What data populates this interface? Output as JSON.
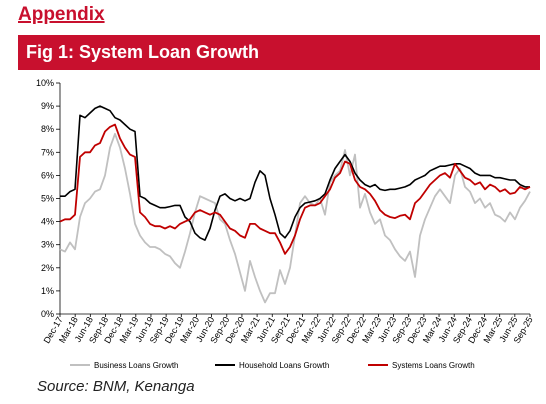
{
  "header": {
    "appendix": "Appendix"
  },
  "figure": {
    "title": "Fig 1: System Loan Growth"
  },
  "footer": {
    "source": "Source: BNM, Kenanga"
  },
  "chart_data": {
    "type": "line",
    "title": "Fig 1: System Loan Growth",
    "xlabel": "",
    "ylabel": "",
    "ylim": [
      0,
      10
    ],
    "y_ticks": [
      "0%",
      "1%",
      "2%",
      "3%",
      "4%",
      "5%",
      "6%",
      "7%",
      "8%",
      "9%",
      "10%"
    ],
    "y_unit": "%",
    "grid": false,
    "legend": "bottom",
    "x_start": "Dec-17",
    "x_end": "Sep-25",
    "x_ticks": [
      "Dec-17",
      "Mar-18",
      "Jun-18",
      "Sep-18",
      "Dec-18",
      "Mar-19",
      "Jun-19",
      "Sep-19",
      "Dec-19",
      "Mar-20",
      "Jun-20",
      "Sep-20",
      "Dec-20",
      "Mar-21",
      "Jun-21",
      "Sep-21",
      "Dec-21",
      "Mar-22",
      "Jun-22",
      "Sep-22",
      "Dec-22",
      "Mar-23",
      "Jun-23",
      "Sep-23",
      "Dec-23",
      "Mar-24",
      "Jun-24",
      "Sep-24",
      "Dec-24",
      "Mar-25",
      "Jun-25",
      "Sep-25"
    ],
    "series": [
      {
        "name": "Business Loans Growth",
        "color": "#c0c0c0",
        "values": [
          2.8,
          2.7,
          3.1,
          2.8,
          4.2,
          4.8,
          5.0,
          5.3,
          5.4,
          6.0,
          7.2,
          7.8,
          7.2,
          6.3,
          5.2,
          3.9,
          3.4,
          3.1,
          2.9,
          2.9,
          2.8,
          2.6,
          2.5,
          2.2,
          2.0,
          2.7,
          3.5,
          4.4,
          5.1,
          5.0,
          4.9,
          4.8,
          4.1,
          3.9,
          3.2,
          2.6,
          1.8,
          1.0,
          2.3,
          1.6,
          1.0,
          0.5,
          0.9,
          0.9,
          1.9,
          1.3,
          2.0,
          3.4,
          4.8,
          5.1,
          4.8,
          4.7,
          5.0,
          4.3,
          5.7,
          6.0,
          6.2,
          7.1,
          6.0,
          6.9,
          4.6,
          5.2,
          4.4,
          3.9,
          4.1,
          3.4,
          3.2,
          2.8,
          2.5,
          2.3,
          2.7,
          1.6,
          3.4,
          4.1,
          4.6,
          5.1,
          5.4,
          5.1,
          4.8,
          6.0,
          6.3,
          5.5,
          5.3,
          4.8,
          5.0,
          4.6,
          4.8,
          4.3,
          4.2,
          4.0,
          4.4,
          4.1,
          4.6,
          4.9,
          5.3
        ]
      },
      {
        "name": "Household Loans Growth",
        "color": "#000000",
        "values": [
          5.1,
          5.1,
          5.3,
          5.4,
          8.6,
          8.5,
          8.7,
          8.9,
          9.0,
          8.9,
          8.8,
          8.5,
          8.4,
          8.2,
          8.0,
          7.9,
          5.1,
          5.0,
          4.8,
          4.7,
          4.6,
          4.6,
          4.65,
          4.7,
          4.7,
          4.2,
          4.0,
          3.5,
          3.3,
          3.2,
          3.7,
          4.5,
          5.1,
          5.2,
          5.0,
          4.9,
          5.0,
          4.9,
          5.0,
          5.7,
          6.2,
          6.0,
          5.0,
          4.3,
          3.5,
          3.3,
          3.6,
          4.2,
          4.6,
          4.8,
          4.85,
          4.9,
          5.0,
          5.2,
          5.8,
          6.3,
          6.6,
          6.9,
          6.6,
          6.1,
          5.8,
          5.6,
          5.5,
          5.6,
          5.4,
          5.35,
          5.4,
          5.4,
          5.45,
          5.5,
          5.6,
          5.8,
          5.9,
          6.0,
          6.2,
          6.3,
          6.4,
          6.4,
          6.45,
          6.5,
          6.5,
          6.4,
          6.3,
          6.1,
          6.0,
          6.0,
          6.0,
          5.9,
          5.9,
          5.85,
          5.8,
          5.8,
          5.6,
          5.5,
          5.5
        ]
      },
      {
        "name": "Systems Loans Growth",
        "color": "#c00000",
        "values": [
          4.0,
          4.1,
          4.1,
          4.3,
          6.8,
          7.0,
          7.0,
          7.3,
          7.4,
          7.9,
          8.1,
          8.2,
          7.6,
          7.2,
          6.9,
          6.8,
          4.4,
          4.2,
          3.9,
          3.8,
          3.8,
          3.7,
          3.8,
          3.7,
          3.9,
          4.0,
          4.1,
          4.4,
          4.5,
          4.4,
          4.3,
          4.4,
          4.3,
          4.0,
          3.7,
          3.6,
          3.4,
          3.3,
          3.9,
          3.9,
          3.7,
          3.6,
          3.5,
          3.5,
          3.1,
          2.6,
          2.9,
          3.4,
          4.1,
          4.6,
          4.7,
          4.7,
          4.8,
          5.1,
          5.4,
          5.9,
          6.1,
          6.6,
          6.5,
          5.8,
          5.5,
          5.4,
          5.2,
          4.9,
          4.5,
          4.3,
          4.2,
          4.15,
          4.25,
          4.3,
          4.1,
          4.8,
          5.0,
          5.3,
          5.6,
          5.8,
          6.0,
          6.1,
          5.9,
          6.5,
          6.2,
          5.9,
          5.8,
          5.6,
          5.7,
          5.4,
          5.6,
          5.5,
          5.3,
          5.4,
          5.2,
          5.25,
          5.5,
          5.4,
          5.5
        ]
      }
    ]
  }
}
